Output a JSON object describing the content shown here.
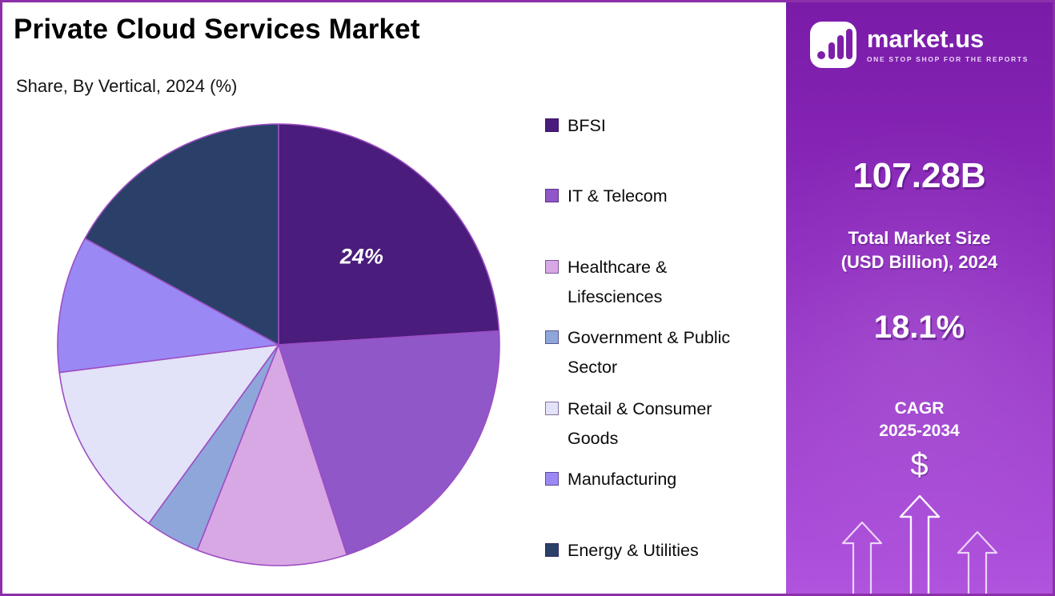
{
  "header": {
    "title": "Private Cloud Services Market",
    "subtitle": "Share, By Vertical, 2024 (%)"
  },
  "chart_data": {
    "type": "pie",
    "title": "Private Cloud Services Market",
    "subtitle": "Share, By Vertical, 2024 (%)",
    "unit": "% share",
    "start_angle_deg": -90,
    "direction": "clockwise",
    "legend_position": "right",
    "slices": [
      {
        "label": "BFSI",
        "value": 24,
        "color": "#4A1C7C",
        "data_label": "24%"
      },
      {
        "label": "IT & Telecom",
        "value": 21,
        "color": "#8F57C7",
        "data_label": ""
      },
      {
        "label": "Healthcare & Lifesciences",
        "value": 11,
        "color": "#D8A8E5",
        "data_label": ""
      },
      {
        "label": "Government & Public Sector",
        "value": 4,
        "color": "#8FA6DA",
        "data_label": ""
      },
      {
        "label": "Retail & Consumer Goods",
        "value": 13,
        "color": "#E2E2F8",
        "data_label": ""
      },
      {
        "label": "Manufacturing",
        "value": 10,
        "color": "#9A89F5",
        "data_label": ""
      },
      {
        "label": "Energy & Utilities",
        "value": 17,
        "color": "#2B4068",
        "data_label": ""
      }
    ]
  },
  "sidebar": {
    "logo": {
      "brand": "market.us",
      "tagline": "ONE STOP SHOP FOR THE REPORTS"
    },
    "market_size": {
      "value": "107.28B",
      "label_line1": "Total Market Size",
      "label_line2": "(USD Billion), 2024"
    },
    "cagr": {
      "value": "18.1%",
      "label": "CAGR",
      "period": "2025-2034"
    },
    "dollar_symbol": "$"
  },
  "style": {
    "frame_border": "#8C2FA9",
    "slice_stroke": "#9D4EC4",
    "panel_gradient_top": "#7A1BA8",
    "panel_gradient_bottom": "#B054DE"
  }
}
